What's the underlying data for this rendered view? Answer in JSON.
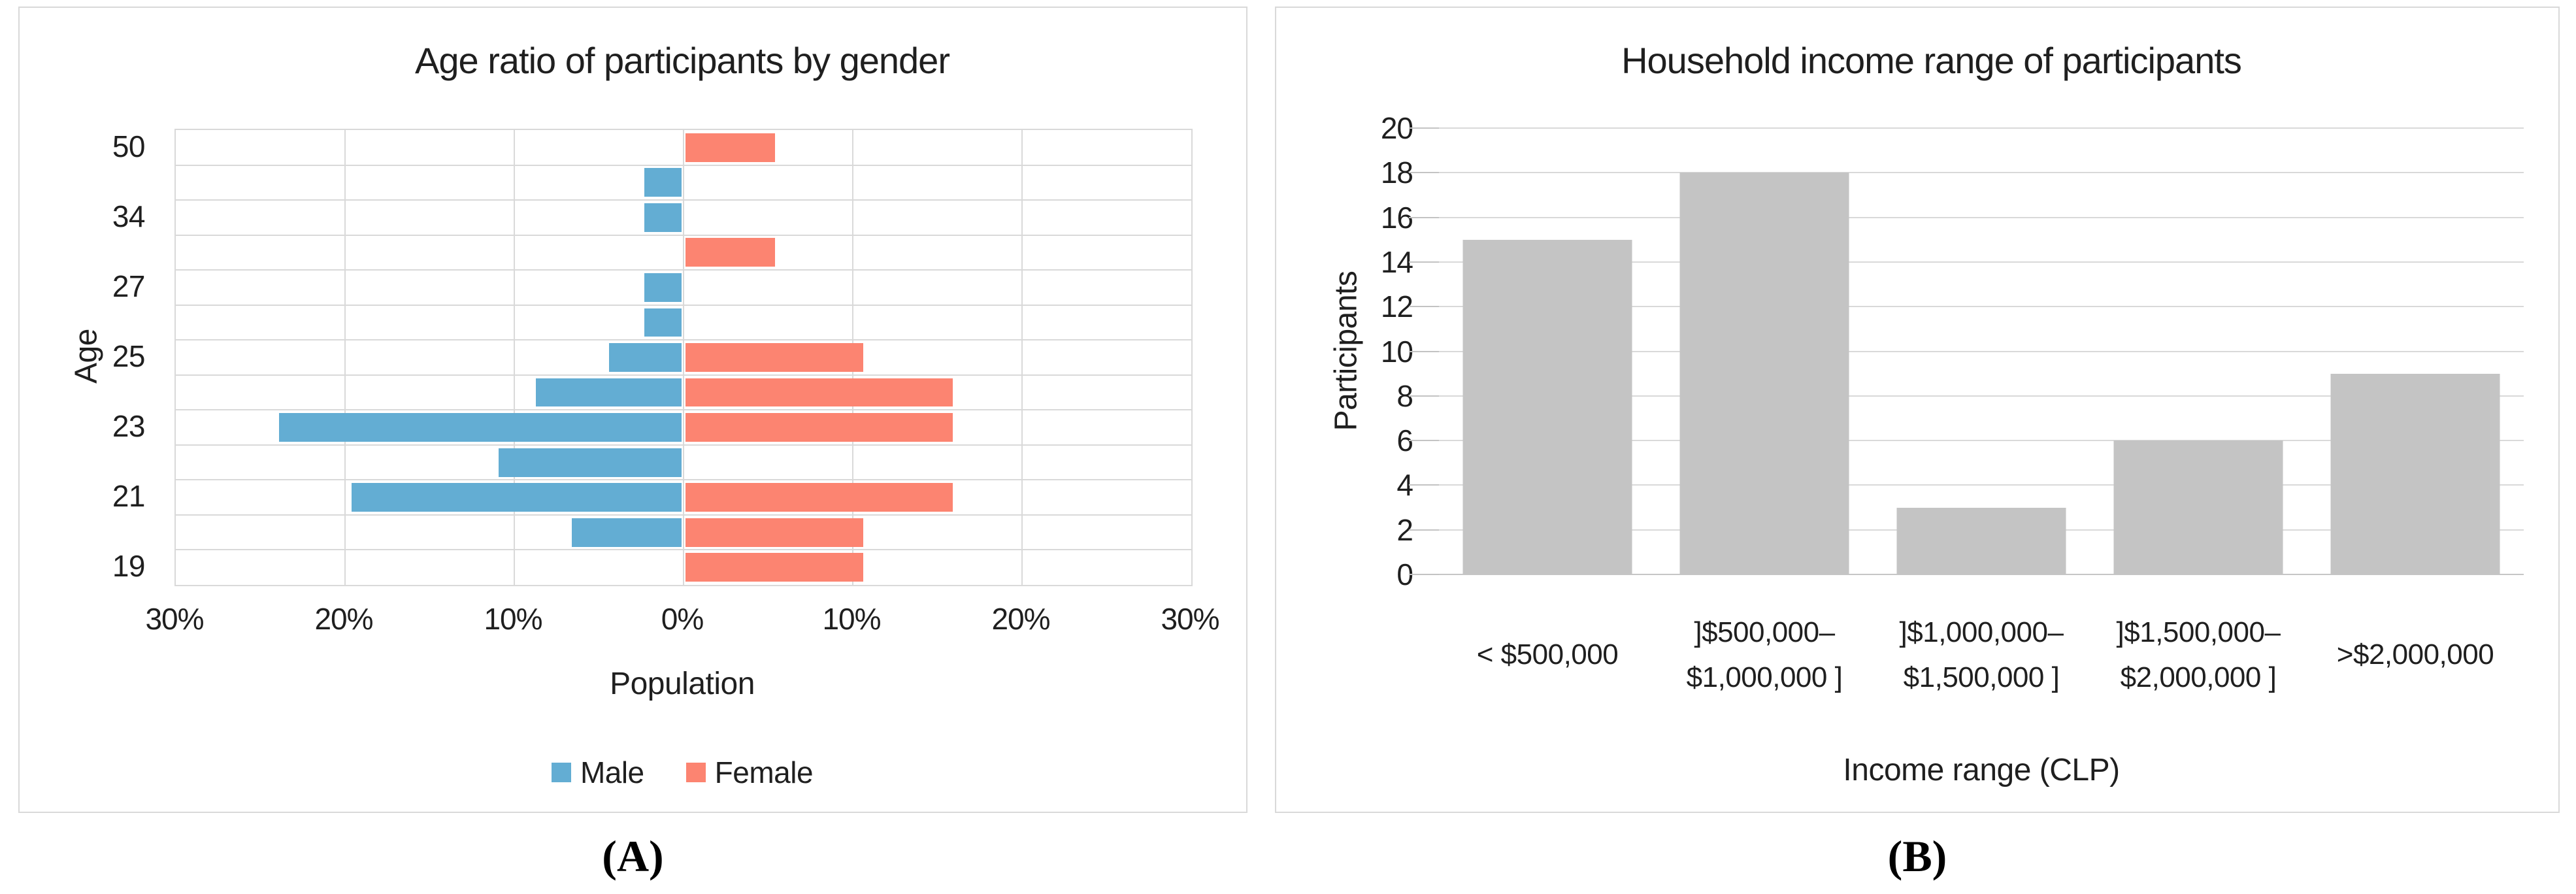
{
  "captions": {
    "a": "(A)",
    "b": "(B)"
  },
  "colors": {
    "male": "#63ADD3",
    "female": "#FC8471",
    "income_bar": "#C4C4C4",
    "gridline": "#D9D9D9"
  },
  "chart_data": [
    {
      "type": "bar",
      "subtype": "population-pyramid",
      "title": "Age ratio of participants by gender",
      "xlabel": "Population",
      "ylabel": "Age",
      "xlim_percent": [
        -30,
        30
      ],
      "x_tick_step_percent": 10,
      "x_tick_labels": [
        "30%",
        "20%",
        "10%",
        "0%",
        "10%",
        "20%",
        "30%"
      ],
      "grid": true,
      "legend_position": "bottom",
      "series": [
        {
          "name": "Male",
          "color": "#63ADD3",
          "side": "left"
        },
        {
          "name": "Female",
          "color": "#FC8471",
          "side": "right"
        }
      ],
      "rows": [
        {
          "age": "50",
          "male": 0,
          "female": 5.3
        },
        {
          "age": "",
          "male": 2.2,
          "female": 0
        },
        {
          "age": "34",
          "male": 2.2,
          "female": 0
        },
        {
          "age": "",
          "male": 0,
          "female": 5.3
        },
        {
          "age": "27",
          "male": 2.2,
          "female": 0
        },
        {
          "age": "",
          "male": 2.2,
          "female": 0
        },
        {
          "age": "25",
          "male": 4.3,
          "female": 10.5
        },
        {
          "age": "",
          "male": 8.6,
          "female": 15.8
        },
        {
          "age": "23",
          "male": 23.8,
          "female": 15.8
        },
        {
          "age": "",
          "male": 10.8,
          "female": 0
        },
        {
          "age": "21",
          "male": 19.5,
          "female": 15.8
        },
        {
          "age": "",
          "male": 6.5,
          "female": 10.5
        },
        {
          "age": "19",
          "male": 0,
          "female": 10.5
        }
      ]
    },
    {
      "type": "bar",
      "title": "Household income range of participants",
      "xlabel": "Income range (CLP)",
      "ylabel": "Participants",
      "categories": [
        "< $500,000",
        "]$500,000–\n$1,000,000 ]",
        "]$1,000,000–\n$1,500,000 ]",
        "]$1,500,000–\n$2,000,000 ]",
        ">$2,000,000"
      ],
      "values": [
        15,
        18,
        3,
        6,
        9
      ],
      "ylim": [
        0,
        20
      ],
      "y_tick_step": 2,
      "y_tick_labels": [
        "0",
        "2",
        "4",
        "6",
        "8",
        "10",
        "12",
        "14",
        "16",
        "18",
        "20"
      ],
      "grid": true,
      "legend_position": "none",
      "bar_color": "#C4C4C4"
    }
  ]
}
